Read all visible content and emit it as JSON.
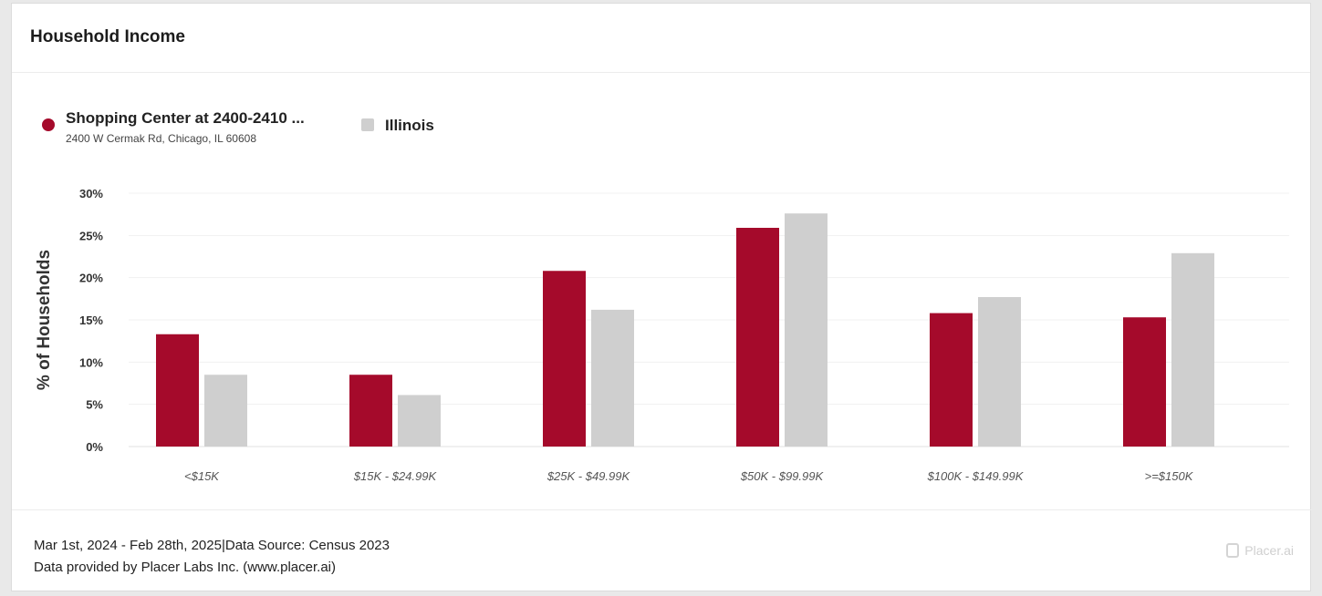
{
  "widget": {
    "title": "Household Income"
  },
  "legend": {
    "items": [
      {
        "label": "Shopping Center at 2400-2410 ...",
        "sublabel": "2400 W Cermak Rd, Chicago, IL 60608",
        "color": "#a50a2b"
      },
      {
        "label": "Illinois",
        "sublabel": "",
        "color": "#cfcfcf"
      }
    ]
  },
  "chart_data": {
    "type": "bar",
    "title": "",
    "xlabel": "",
    "ylabel": "% of Households",
    "categories": [
      "<$15K",
      "$15K - $24.99K",
      "$25K - $49.99K",
      "$50K - $99.99K",
      "$100K - $149.99K",
      ">=$150K"
    ],
    "series": [
      {
        "name": "Shopping Center at 2400-2410 ...",
        "values": [
          13.3,
          8.5,
          20.8,
          25.9,
          15.8,
          15.3
        ],
        "color": "#a50a2b"
      },
      {
        "name": "Illinois",
        "values": [
          8.5,
          6.1,
          16.2,
          27.6,
          17.7,
          22.9
        ],
        "color": "#cfcfcf"
      }
    ],
    "ylim": [
      0,
      30
    ],
    "yticks": [
      0,
      5,
      10,
      15,
      20,
      25,
      30
    ],
    "ytick_labels": [
      "0%",
      "5%",
      "10%",
      "15%",
      "20%",
      "25%",
      "30%"
    ],
    "grid": true,
    "legend_position": "top-left"
  },
  "footer": {
    "date_range": "Mar 1st, 2024 - Feb 28th, 2025",
    "separator": "|",
    "source": "Data Source: Census 2023",
    "provider": "Data provided by Placer Labs Inc. (www.placer.ai)",
    "brand": "Placer.ai"
  }
}
